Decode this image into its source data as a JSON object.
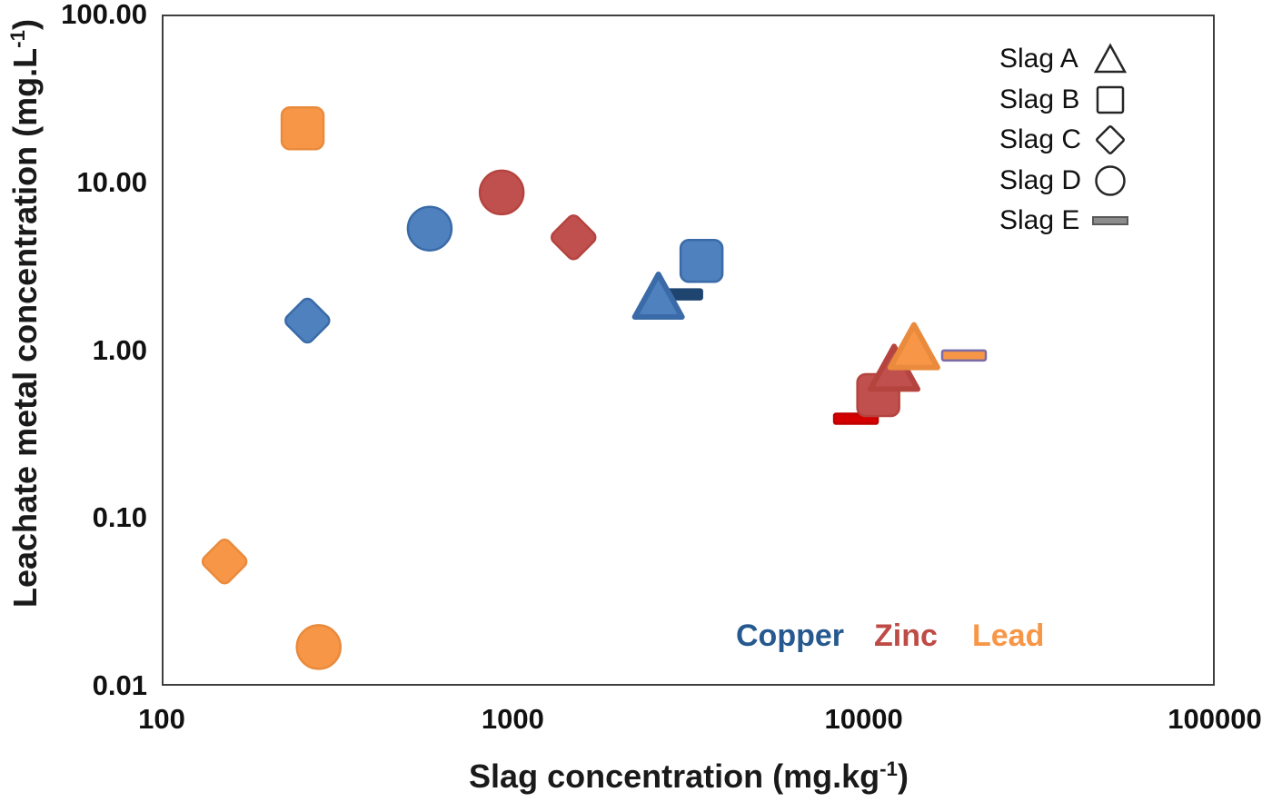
{
  "figure": {
    "background": "#ffffff",
    "plot_border_color": "#3f3f3f"
  },
  "axes": {
    "x_title": {
      "pre": "Slag concentration (mg.kg",
      "sup": "-1",
      "post": ")"
    },
    "y_title": {
      "pre": "Leachate metal concentration (mg.L",
      "sup": "-1",
      "post": ")"
    }
  },
  "chart_data": {
    "type": "scatter",
    "title": "",
    "xlabel": "Slag concentration (mg.kg-1)",
    "ylabel": "Leachate metal concentration (mg.L-1)",
    "x_scale": "log",
    "y_scale": "log",
    "xlim": [
      100,
      100000
    ],
    "ylim": [
      0.01,
      100
    ],
    "x_tick_labels": [
      "100",
      "1000",
      "10000",
      "100000"
    ],
    "y_tick_labels": [
      "100.00",
      "10.00",
      "1.00",
      "0.10",
      "0.01"
    ],
    "grid": false,
    "legend_position": "top-right-inside",
    "shape_legend": [
      {
        "label": "Slag A",
        "shape": "triangle"
      },
      {
        "label": "Slag B",
        "shape": "square"
      },
      {
        "label": "Slag C",
        "shape": "diamond"
      },
      {
        "label": "Slag D",
        "shape": "circle"
      },
      {
        "label": "Slag E",
        "shape": "bar"
      }
    ],
    "color_legend": [
      {
        "label": "Copper",
        "color": "#25598F"
      },
      {
        "label": "Zinc",
        "color": "#BE4B45"
      },
      {
        "label": "Lead",
        "color": "#F79646"
      }
    ],
    "series": [
      {
        "name": "Copper",
        "fill": "#4E81BD",
        "stroke": "#3A6BA8",
        "bar_fill": "#1F4470",
        "bar_stroke": "#1F4470",
        "points": [
          {
            "slag": "E",
            "shape": "bar",
            "x": 3000,
            "y": 2.15
          },
          {
            "slag": "A",
            "shape": "triangle",
            "x": 2600,
            "y": 2.1
          },
          {
            "slag": "B",
            "shape": "square",
            "x": 3450,
            "y": 3.4
          },
          {
            "slag": "C",
            "shape": "diamond",
            "x": 260,
            "y": 1.5
          },
          {
            "slag": "D",
            "shape": "circle",
            "x": 580,
            "y": 5.3
          }
        ]
      },
      {
        "name": "Zinc",
        "fill": "#C0504D",
        "stroke": "#B5443F",
        "bar_fill": "#D40000",
        "bar_stroke": "#C00000",
        "points": [
          {
            "slag": "E",
            "shape": "bar",
            "x": 9500,
            "y": 0.39
          },
          {
            "slag": "B",
            "shape": "square",
            "x": 11000,
            "y": 0.54
          },
          {
            "slag": "A",
            "shape": "triangle",
            "x": 12200,
            "y": 0.78
          },
          {
            "slag": "C",
            "shape": "diamond",
            "x": 1490,
            "y": 4.7
          },
          {
            "slag": "D",
            "shape": "circle",
            "x": 930,
            "y": 8.7
          }
        ]
      },
      {
        "name": "Lead",
        "fill": "#F79646",
        "stroke": "#E98A3C",
        "bar_fill": "#F79646",
        "bar_stroke": "#7C6BA6",
        "points": [
          {
            "slag": "B",
            "shape": "square",
            "x": 252,
            "y": 21
          },
          {
            "slag": "C",
            "shape": "diamond",
            "x": 151,
            "y": 0.055
          },
          {
            "slag": "D",
            "shape": "circle",
            "x": 280,
            "y": 0.017
          },
          {
            "slag": "A",
            "shape": "triangle",
            "x": 13900,
            "y": 1.05
          },
          {
            "slag": "E",
            "shape": "bar",
            "x": 19300,
            "y": 0.93
          }
        ]
      }
    ]
  }
}
